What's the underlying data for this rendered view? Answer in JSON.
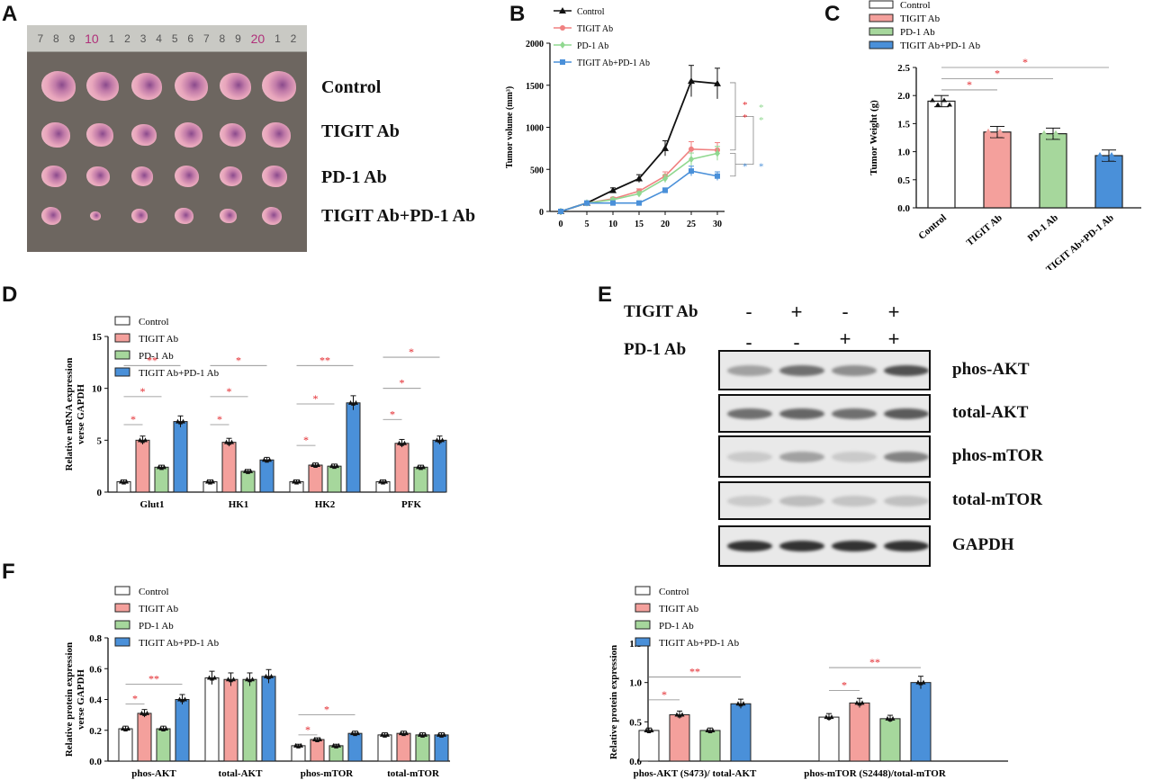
{
  "panel_letters": {
    "A": "A",
    "B": "B",
    "C": "C",
    "D": "D",
    "E": "E",
    "F": "F"
  },
  "colors": {
    "control": "#ffffff",
    "tigit": "#f4a09c",
    "pd1": "#a6d79c",
    "combo": "#4a90d9",
    "sig": "#e3262b",
    "line_control": "#111111",
    "line_tigit": "#f08080",
    "line_pd1": "#90d890",
    "line_combo": "#4a90d9"
  },
  "panel_a": {
    "ruler_marks": [
      "7",
      "8",
      "9",
      "10",
      "1",
      "2",
      "3",
      "4",
      "5",
      "6",
      "7",
      "8",
      "9",
      "20",
      "1",
      "2"
    ],
    "row_labels": [
      "Control",
      "TIGIT Ab",
      "PD-1 Ab",
      "TIGIT Ab+PD-1 Ab"
    ]
  },
  "chart_data": [
    {
      "id": "B",
      "type": "line",
      "ylabel": "Tumor volume (mm³)",
      "x": [
        0,
        5,
        10,
        15,
        20,
        25,
        30
      ],
      "ylim": [
        0,
        2000
      ],
      "yticks": [
        0,
        500,
        1000,
        1500,
        2000
      ],
      "series": [
        {
          "name": "Control",
          "values": [
            0,
            100,
            250,
            390,
            750,
            1550,
            1520
          ]
        },
        {
          "name": "TIGIT Ab",
          "values": [
            0,
            100,
            150,
            240,
            420,
            740,
            730
          ]
        },
        {
          "name": "PD-1 Ab",
          "values": [
            0,
            100,
            140,
            210,
            390,
            620,
            690
          ]
        },
        {
          "name": "TIGIT Ab+PD-1 Ab",
          "values": [
            0,
            100,
            100,
            100,
            250,
            480,
            420
          ]
        }
      ],
      "significance": [
        "*",
        "*",
        "*",
        "*",
        "*",
        "*"
      ]
    },
    {
      "id": "C",
      "type": "bar",
      "ylabel": "Tumor Weight (g)",
      "categories": [
        "Control",
        "TIGIT Ab",
        "PD-1 Ab",
        "TIGIT Ab+PD-1 Ab"
      ],
      "values": [
        1.9,
        1.35,
        1.32,
        0.93
      ],
      "ylim": [
        0,
        2.5
      ],
      "yticks": [
        "0.0",
        "0.5",
        "1.0",
        "1.5",
        "2.0",
        "2.5"
      ],
      "significance": [
        "*",
        "*",
        "*"
      ]
    },
    {
      "id": "D",
      "type": "bar",
      "ylabel": "Relative mRNA expression verse GAPDH",
      "categories": [
        "Glut1",
        "HK1",
        "HK2",
        "PFK"
      ],
      "series": [
        {
          "name": "Control",
          "values": [
            1,
            1,
            1,
            1
          ]
        },
        {
          "name": "TIGIT Ab",
          "values": [
            5,
            4.8,
            2.6,
            4.7
          ]
        },
        {
          "name": "PD-1 Ab",
          "values": [
            2.4,
            2.0,
            2.5,
            2.4
          ]
        },
        {
          "name": "TIGIT Ab+PD-1 Ab",
          "values": [
            6.8,
            3.1,
            8.6,
            5.0
          ]
        }
      ],
      "ylim": [
        0,
        15
      ],
      "yticks": [
        "0",
        "5",
        "10",
        "15"
      ],
      "significance": [
        "*",
        "*",
        "**",
        "*",
        "*",
        "*",
        "*",
        "*",
        "**",
        "*",
        "*",
        "*"
      ]
    },
    {
      "id": "F1",
      "type": "bar",
      "ylabel": "Relative protein expression verse GAPDH",
      "categories": [
        "phos-AKT",
        "total-AKT",
        "phos-mTOR",
        "total-mTOR"
      ],
      "series": [
        {
          "name": "Control",
          "values": [
            0.21,
            0.54,
            0.1,
            0.17
          ]
        },
        {
          "name": "TIGIT Ab",
          "values": [
            0.31,
            0.53,
            0.14,
            0.18
          ]
        },
        {
          "name": "PD-1 Ab",
          "values": [
            0.21,
            0.53,
            0.1,
            0.17
          ]
        },
        {
          "name": "TIGIT Ab+PD-1 Ab",
          "values": [
            0.4,
            0.55,
            0.18,
            0.17
          ]
        }
      ],
      "ylim": [
        0,
        0.8
      ],
      "yticks": [
        "0.0",
        "0.2",
        "0.4",
        "0.6",
        "0.8"
      ],
      "significance": [
        "*",
        "**",
        "*",
        "*"
      ]
    },
    {
      "id": "F2",
      "type": "bar",
      "ylabel": "Relative protein expression",
      "categories": [
        "phos-AKT (S473)/ total-AKT",
        "phos-mTOR (S2448)/total-mTOR"
      ],
      "series": [
        {
          "name": "Control",
          "values": [
            0.39,
            0.56
          ]
        },
        {
          "name": "TIGIT Ab",
          "values": [
            0.59,
            0.74
          ]
        },
        {
          "name": "PD-1 Ab",
          "values": [
            0.39,
            0.54
          ]
        },
        {
          "name": "TIGIT Ab+PD-1 Ab",
          "values": [
            0.73,
            1.0
          ]
        }
      ],
      "ylim": [
        0,
        1.5
      ],
      "yticks": [
        "0.0",
        "0.5",
        "1.0",
        "1.5"
      ],
      "significance": [
        "*",
        "**",
        "*",
        "**"
      ]
    }
  ],
  "panel_e": {
    "tigit_label": "TIGIT Ab",
    "pd1_label": "PD-1  Ab",
    "tigit_signs": [
      "-",
      "+",
      "-",
      "+"
    ],
    "pd1_signs": [
      "-",
      "-",
      "+",
      "+"
    ],
    "blots": [
      "phos-AKT",
      "total-AKT",
      "phos-mTOR",
      "total-mTOR",
      "GAPDH"
    ]
  }
}
